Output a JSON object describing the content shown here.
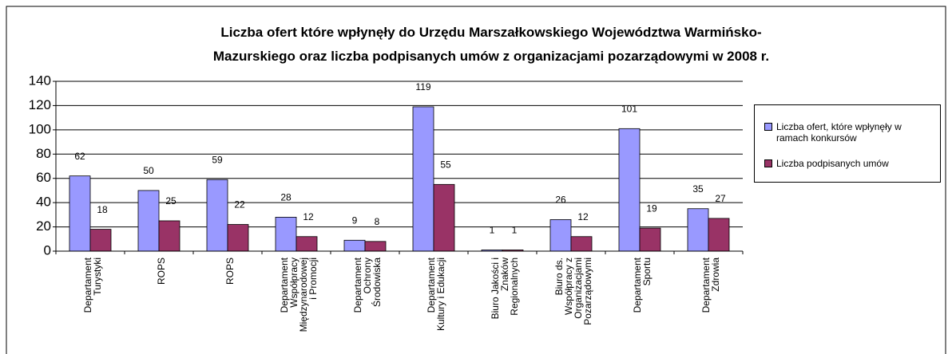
{
  "chart_data": {
    "type": "bar",
    "title": "Liczba ofert które wpłynęły do Urzędu Marszałkowskiego Województwa Warmińsko-Mazurskiego oraz liczba podpisanych umów z organizacjami pozarządowymi w 2008 r.",
    "categories": [
      [
        "Departament",
        "Turystyki"
      ],
      [
        "ROPS"
      ],
      [
        "ROPS"
      ],
      [
        "Departament",
        "Współpracy",
        "Międzynarodowej",
        "i Promocji"
      ],
      [
        "Departament",
        "Ochrony",
        "Środowiska"
      ],
      [
        "Departament",
        "Kultury i Edukacji"
      ],
      [
        "Biuro Jakości i",
        "Znaków",
        "Regionalnych"
      ],
      [
        "Biuro ds.",
        "Współpracy z",
        "Organizacjami",
        "Pozarządowymi"
      ],
      [
        "Departament",
        "Sportu"
      ],
      [
        "Departament",
        "Zdrowia"
      ]
    ],
    "series": [
      {
        "name": "Liczba ofert, które wpłynęły w ramach konkursów",
        "color": "#9999ff",
        "values": [
          62,
          50,
          59,
          28,
          9,
          119,
          1,
          26,
          101,
          35
        ]
      },
      {
        "name": "Liczba podpisanych umów",
        "color": "#993366",
        "values": [
          18,
          25,
          22,
          12,
          8,
          55,
          1,
          12,
          19,
          27
        ]
      }
    ],
    "ylim": [
      0,
      140
    ],
    "yticks": [
      0,
      20,
      40,
      60,
      80,
      100,
      120,
      140
    ],
    "grid": true,
    "legend": "right"
  }
}
